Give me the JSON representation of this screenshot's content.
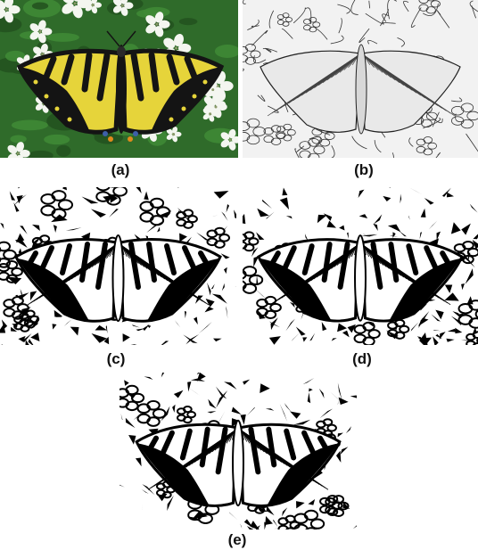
{
  "figure": {
    "panels": [
      {
        "id": "a",
        "label": "(a)",
        "style": "color"
      },
      {
        "id": "b",
        "label": "(b)",
        "style": "sketch"
      },
      {
        "id": "c",
        "label": "(c)",
        "style": "binary"
      },
      {
        "id": "d",
        "label": "(d)",
        "style": "binary"
      },
      {
        "id": "e",
        "label": "(e)",
        "style": "binary"
      }
    ]
  },
  "colors": {
    "wing_yellow": "#e6d43a",
    "wing_black": "#141414",
    "leaf_green": "#2f6b2a",
    "flower_white": "#f4f6f0",
    "wing_blue": "#3d5fa8",
    "wing_orange": "#e08a1c"
  }
}
